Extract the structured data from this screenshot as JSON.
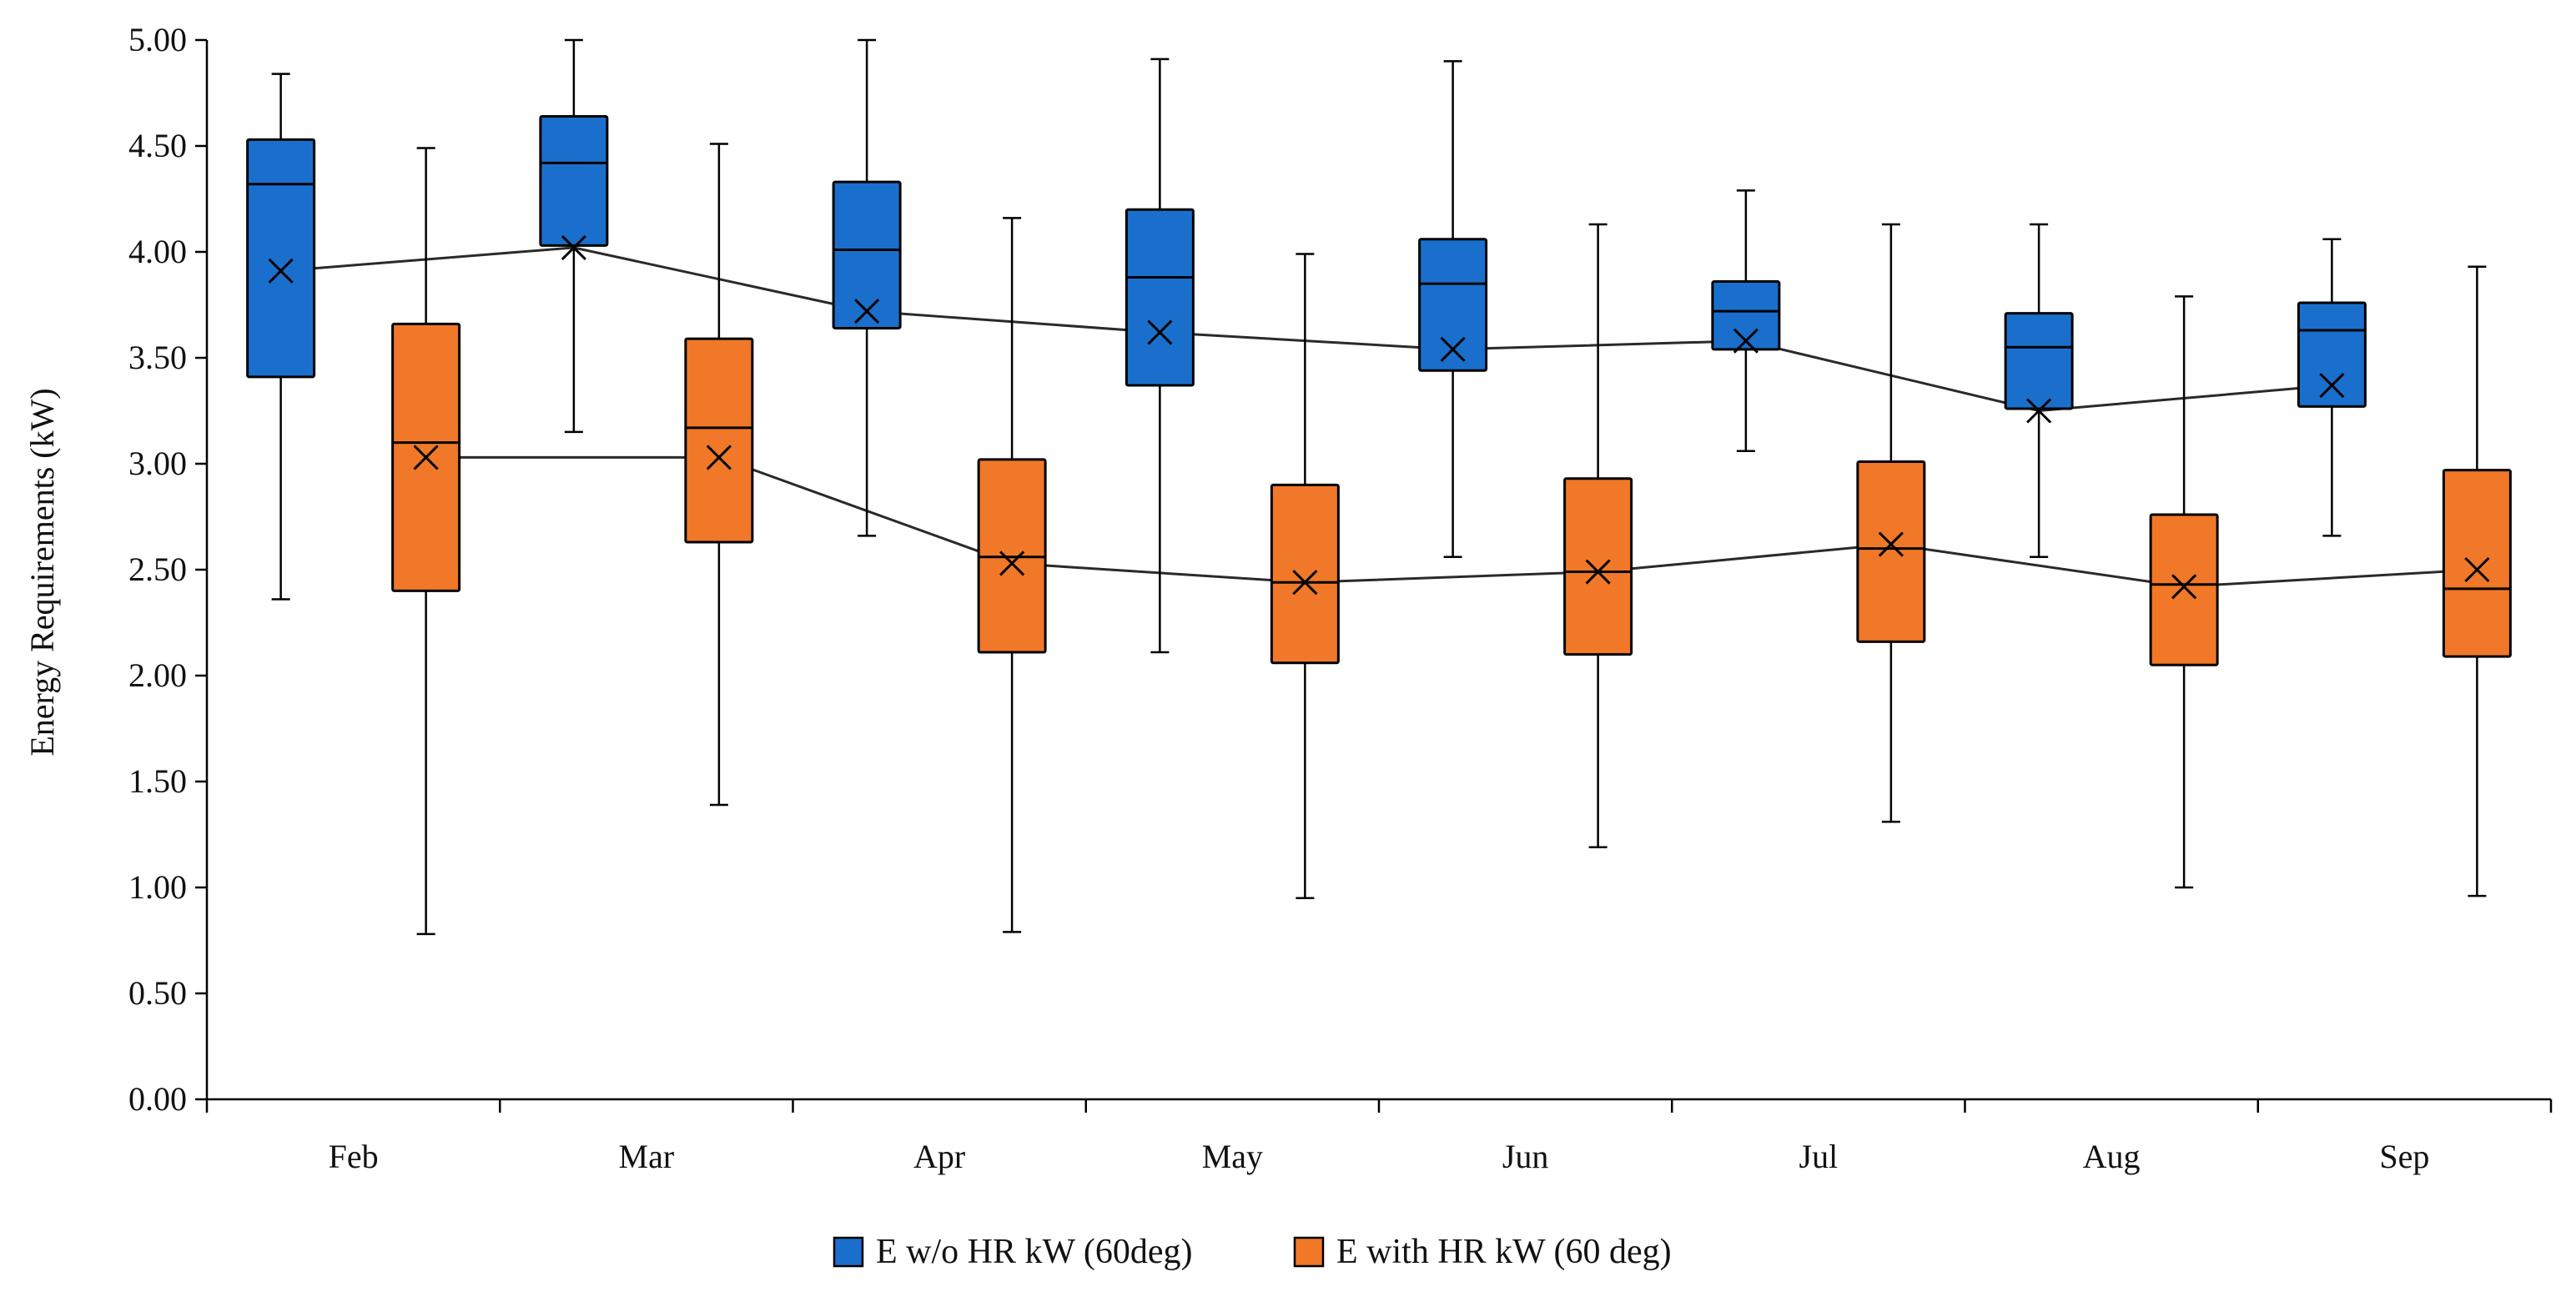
{
  "chart_data": {
    "type": "box",
    "title": "",
    "xlabel": "",
    "ylabel": "Energy Requirements (kW)",
    "ylim": [
      0,
      5
    ],
    "yticks": [
      "0.00",
      "0.50",
      "1.00",
      "1.50",
      "2.00",
      "2.50",
      "3.00",
      "3.50",
      "4.00",
      "4.50",
      "5.00"
    ],
    "categories": [
      "Feb",
      "Mar",
      "Apr",
      "May",
      "Jun",
      "Jul",
      "Aug",
      "Sep"
    ],
    "grid": false,
    "legend_position": "bottom-center",
    "series": [
      {
        "name": "E w/o HR kW (60deg)",
        "color": "#1a6fcc",
        "boxes": [
          {
            "min": 2.36,
            "q1": 3.41,
            "median": 4.32,
            "q3": 4.53,
            "max": 4.84,
            "mean": 3.91
          },
          {
            "min": 3.15,
            "q1": 4.03,
            "median": 4.42,
            "q3": 4.64,
            "max": 5.0,
            "mean": 4.02
          },
          {
            "min": 2.66,
            "q1": 3.64,
            "median": 4.01,
            "q3": 4.33,
            "max": 5.0,
            "mean": 3.72
          },
          {
            "min": 2.11,
            "q1": 3.37,
            "median": 3.88,
            "q3": 4.2,
            "max": 4.91,
            "mean": 3.62
          },
          {
            "min": 2.56,
            "q1": 3.44,
            "median": 3.85,
            "q3": 4.06,
            "max": 4.9,
            "mean": 3.54
          },
          {
            "min": 3.06,
            "q1": 3.54,
            "median": 3.72,
            "q3": 3.86,
            "max": 4.29,
            "mean": 3.58
          },
          {
            "min": 2.56,
            "q1": 3.26,
            "median": 3.55,
            "q3": 3.71,
            "max": 4.13,
            "mean": 3.25
          },
          {
            "min": 2.66,
            "q1": 3.27,
            "median": 3.63,
            "q3": 3.76,
            "max": 4.06,
            "mean": 3.37
          }
        ]
      },
      {
        "name": "E with HR kW (60 deg)",
        "color": "#f07828",
        "boxes": [
          {
            "min": 0.78,
            "q1": 2.4,
            "median": 3.1,
            "q3": 3.66,
            "max": 4.49,
            "mean": 3.03
          },
          {
            "min": 1.39,
            "q1": 2.63,
            "median": 3.17,
            "q3": 3.59,
            "max": 4.51,
            "mean": 3.03
          },
          {
            "min": 0.79,
            "q1": 2.11,
            "median": 2.56,
            "q3": 3.02,
            "max": 4.16,
            "mean": 2.53
          },
          {
            "min": 0.95,
            "q1": 2.06,
            "median": 2.44,
            "q3": 2.9,
            "max": 3.99,
            "mean": 2.44
          },
          {
            "min": 1.19,
            "q1": 2.1,
            "median": 2.49,
            "q3": 2.93,
            "max": 4.13,
            "mean": 2.49
          },
          {
            "min": 1.31,
            "q1": 2.16,
            "median": 2.6,
            "q3": 3.01,
            "max": 4.13,
            "mean": 2.62
          },
          {
            "min": 1.0,
            "q1": 2.05,
            "median": 2.43,
            "q3": 2.76,
            "max": 3.79,
            "mean": 2.42
          },
          {
            "min": 0.96,
            "q1": 2.09,
            "median": 2.41,
            "q3": 2.97,
            "max": 3.93,
            "mean": 2.5
          }
        ]
      }
    ]
  }
}
